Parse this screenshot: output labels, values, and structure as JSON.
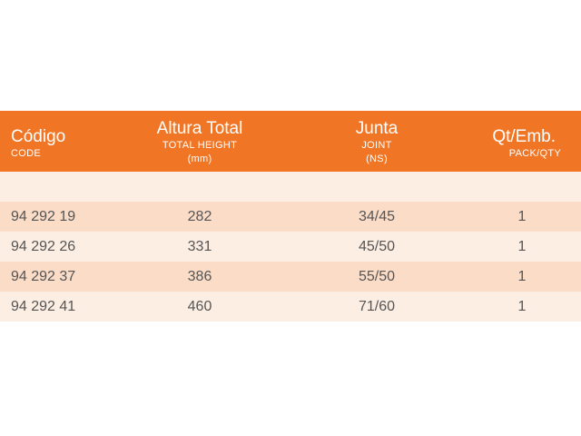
{
  "header": {
    "code_label": "Código",
    "code_sub": "CODE",
    "height_label": "Altura Total",
    "height_sub": "TOTAL  HEIGHT",
    "height_unit": "(mm)",
    "joint_label": "Junta",
    "joint_sub": "JOINT",
    "joint_unit": "(NS)",
    "qty_label": "Qt/Emb.",
    "qty_sub": "PACK/QTY"
  },
  "rows": [
    {
      "code": "94 292 19",
      "height": "282",
      "joint": "34/45",
      "qty": "1"
    },
    {
      "code": "94 292 26",
      "height": "331",
      "joint": "45/50",
      "qty": "1"
    },
    {
      "code": "94 292 37",
      "height": "386",
      "joint": "55/50",
      "qty": "1"
    },
    {
      "code": "94 292 41",
      "height": "460",
      "joint": "71/60",
      "qty": "1"
    }
  ],
  "colors": {
    "header_bg": "#f07626",
    "row_dark": "#fbdcc7",
    "row_light": "#fdeee4"
  }
}
